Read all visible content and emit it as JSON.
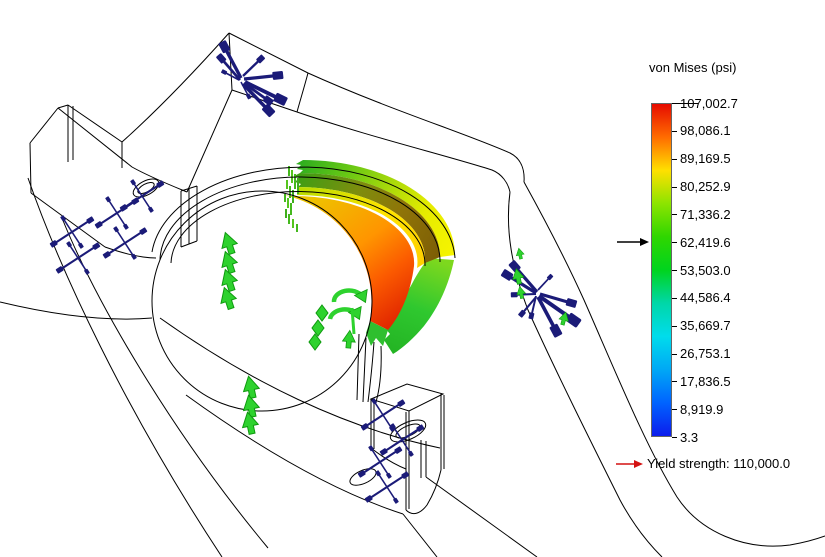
{
  "viewport": {
    "background": "#ffffff",
    "wireframe_color": "#000000",
    "load_arrow_color": "#2ed22e",
    "restraint_arrow_color": "#1b1b78"
  },
  "legend": {
    "title": "von Mises (psi)",
    "ticks": [
      "107,002.7",
      "98,086.1",
      "89,169.5",
      "80,252.9",
      "71,336.2",
      "62,419.6",
      "53,503.0",
      "44,586.4",
      "35,669.7",
      "26,753.1",
      "17,836.5",
      "8,919.9",
      "3.3"
    ],
    "pointer_tick_index": 5,
    "pointer_tick_value": "62,419.6",
    "yield_label": "Yield strength: 110,000.0",
    "yield_arrow_color": "#d41111",
    "gradient_stops": [
      "#e60b00",
      "#ff6c00",
      "#ffe000",
      "#8ce400",
      "#2fd600",
      "#00d41e",
      "#00d7a8",
      "#00dcec",
      "#00a8f5",
      "#0063ff",
      "#0c1cec"
    ]
  }
}
